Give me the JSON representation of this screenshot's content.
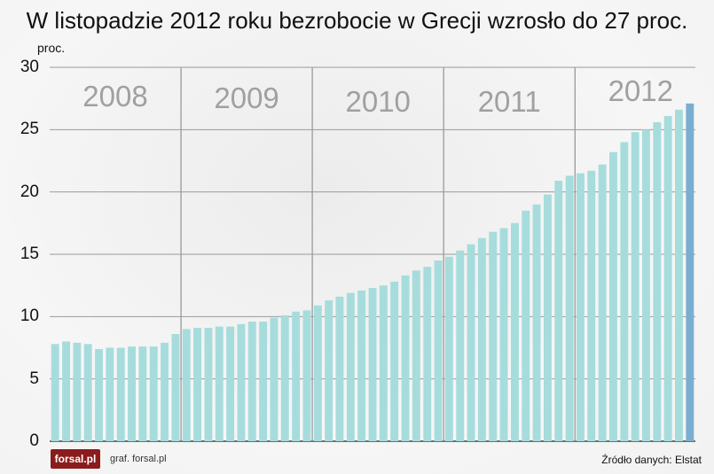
{
  "title": "W listopadzie 2012 roku bezrobocie w Grecji wzrosło do 27 proc.",
  "unit_label": "proc.",
  "footer": {
    "logo": "forsal.pl",
    "credit": "graf. forsal.pl",
    "source": "Źródło danych: Elstat"
  },
  "colors": {
    "bar": "#a7dcdc",
    "highlight_bar": "#7aaed1",
    "grid": "#9a9a9a",
    "year_label": "#a0a0a0"
  },
  "chart_data": {
    "type": "bar",
    "ylim": [
      0,
      30
    ],
    "yticks": [
      0,
      5,
      10,
      15,
      20,
      25,
      30
    ],
    "years": [
      "2008",
      "2009",
      "2010",
      "2011",
      "2012"
    ],
    "values": [
      7.8,
      8.0,
      7.9,
      7.8,
      7.4,
      7.5,
      7.5,
      7.6,
      7.6,
      7.6,
      7.9,
      8.6,
      9.0,
      9.1,
      9.1,
      9.2,
      9.2,
      9.4,
      9.6,
      9.6,
      9.9,
      10.1,
      10.4,
      10.5,
      10.9,
      11.3,
      11.6,
      11.9,
      12.1,
      12.3,
      12.5,
      12.8,
      13.3,
      13.7,
      14.0,
      14.5,
      14.8,
      15.3,
      15.8,
      16.3,
      16.8,
      17.1,
      17.5,
      18.5,
      19.0,
      19.8,
      20.9,
      21.3,
      21.5,
      21.7,
      22.2,
      23.2,
      24.0,
      24.8,
      25.0,
      25.6,
      26.1,
      26.6,
      27.1
    ],
    "highlight_index": 58
  }
}
